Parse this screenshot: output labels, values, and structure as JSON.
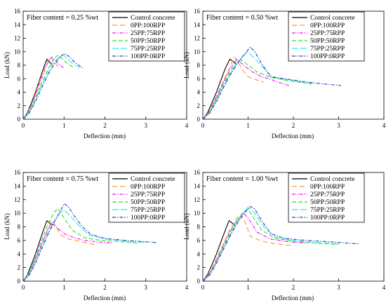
{
  "chart_data": [
    {
      "type": "line",
      "annotation": "Fiber content = 0.25 %wt",
      "xlabel": "Deflection (mm)",
      "ylabel": "Load (kN)",
      "xlim": [
        0,
        4
      ],
      "ylim": [
        0,
        16
      ],
      "xticks": [
        0,
        1,
        2,
        3,
        4
      ],
      "yticks": [
        0,
        2,
        4,
        6,
        8,
        10,
        12,
        14,
        16
      ],
      "grid": false,
      "legend_position": "top-right",
      "series": [
        {
          "name": "Control concrete",
          "x": [
            0,
            0.1,
            0.2,
            0.3,
            0.4,
            0.5,
            0.58,
            0.65,
            0.7
          ],
          "y": [
            0,
            0.9,
            2.4,
            4.0,
            5.8,
            7.6,
            8.9,
            8.4,
            8.1
          ]
        },
        {
          "name": "0PP:100RPP",
          "x": [
            0,
            0.1,
            0.2,
            0.3,
            0.4,
            0.5,
            0.6,
            0.68,
            0.76,
            0.85
          ],
          "y": [
            0,
            0.8,
            2.2,
            3.8,
            5.6,
            7.3,
            8.7,
            9.3,
            8.5,
            7.8
          ]
        },
        {
          "name": "25PP:75RPP",
          "x": [
            0,
            0.1,
            0.2,
            0.3,
            0.4,
            0.5,
            0.6,
            0.7,
            0.8,
            0.9,
            1.0
          ],
          "y": [
            0,
            0.8,
            2.1,
            3.6,
            5.3,
            6.9,
            8.3,
            9.2,
            8.6,
            8.0,
            7.6
          ]
        },
        {
          "name": "50PP:50RPP",
          "x": [
            0,
            0.15,
            0.3,
            0.45,
            0.6,
            0.75,
            0.85,
            0.95,
            1.05,
            1.15,
            1.25
          ],
          "y": [
            0,
            1.2,
            3.2,
            5.4,
            7.3,
            8.9,
            9.5,
            9.0,
            8.4,
            8.0,
            7.6
          ]
        },
        {
          "name": "75PP:25RPP",
          "x": [
            0,
            0.15,
            0.3,
            0.45,
            0.6,
            0.75,
            0.9,
            0.98,
            1.1,
            1.25,
            1.4
          ],
          "y": [
            0,
            1.0,
            2.9,
            5.0,
            6.9,
            8.4,
            9.3,
            9.6,
            8.8,
            8.1,
            7.6
          ]
        },
        {
          "name": "100PP:0RPP",
          "x": [
            0,
            0.15,
            0.3,
            0.45,
            0.6,
            0.75,
            0.9,
            1.0,
            1.1,
            1.25,
            1.45
          ],
          "y": [
            0,
            0.9,
            2.6,
            4.6,
            6.5,
            8.1,
            9.2,
            9.7,
            9.4,
            8.5,
            7.6
          ]
        }
      ]
    },
    {
      "type": "line",
      "annotation": "Fiber content = 0.50 %wt",
      "xlabel": "Deflection (mm)",
      "ylabel": "Load (kN)",
      "xlim": [
        0,
        4
      ],
      "ylim": [
        0,
        16
      ],
      "xticks": [
        0,
        1,
        2,
        3,
        4
      ],
      "yticks": [
        0,
        2,
        4,
        6,
        8,
        10,
        12,
        14,
        16
      ],
      "grid": false,
      "legend_position": "top-right",
      "series": [
        {
          "name": "Control concrete",
          "x": [
            0,
            0.1,
            0.2,
            0.3,
            0.4,
            0.5,
            0.6,
            0.68,
            0.74
          ],
          "y": [
            0,
            0.9,
            2.4,
            4.0,
            5.8,
            7.6,
            8.9,
            8.5,
            8.2
          ]
        },
        {
          "name": "0PP:100RPP",
          "x": [
            0,
            0.15,
            0.3,
            0.45,
            0.6,
            0.7,
            0.8,
            0.9,
            1.0,
            1.2,
            1.35
          ],
          "y": [
            0,
            1.3,
            3.4,
            5.6,
            7.8,
            9.2,
            8.2,
            7.1,
            6.3,
            5.8,
            5.5
          ]
        },
        {
          "name": "25PP:75RPP",
          "x": [
            0,
            0.15,
            0.3,
            0.45,
            0.6,
            0.75,
            0.9,
            1.1,
            1.3,
            1.5,
            1.7,
            1.9
          ],
          "y": [
            0,
            1.2,
            3.2,
            5.4,
            7.4,
            8.9,
            8.0,
            7.0,
            6.3,
            5.9,
            5.4,
            5.0
          ]
        },
        {
          "name": "50PP:50RPP",
          "x": [
            0,
            0.15,
            0.3,
            0.45,
            0.6,
            0.75,
            0.85,
            1.0,
            1.2,
            1.5,
            1.8,
            2.1,
            2.4
          ],
          "y": [
            0,
            1.1,
            3.0,
            5.1,
            7.0,
            8.4,
            8.8,
            8.0,
            7.0,
            6.2,
            5.8,
            5.5,
            5.2
          ]
        },
        {
          "name": "75PP:25RPP",
          "x": [
            0,
            0.15,
            0.3,
            0.45,
            0.6,
            0.75,
            0.9,
            1.0,
            1.1,
            1.3,
            1.5,
            1.8,
            2.1,
            2.45
          ],
          "y": [
            0,
            1.0,
            2.8,
            4.8,
            6.7,
            8.3,
            9.4,
            10.0,
            9.3,
            7.9,
            6.4,
            5.9,
            5.6,
            5.3
          ]
        },
        {
          "name": "100PP:0RPP",
          "x": [
            0,
            0.15,
            0.3,
            0.45,
            0.6,
            0.75,
            0.9,
            1.05,
            1.15,
            1.3,
            1.5,
            1.9,
            2.3,
            2.7,
            3.05
          ],
          "y": [
            0,
            0.9,
            2.6,
            4.6,
            6.5,
            8.1,
            9.5,
            10.7,
            10.0,
            8.2,
            6.3,
            5.9,
            5.5,
            5.2,
            5.0
          ]
        }
      ]
    },
    {
      "type": "line",
      "annotation": "Fiber content = 0.75 %wt",
      "xlabel": "Deflection (mm)",
      "ylabel": "Load (kN)",
      "xlim": [
        0,
        4
      ],
      "ylim": [
        0,
        16
      ],
      "xticks": [
        0,
        1,
        2,
        3,
        4
      ],
      "yticks": [
        0,
        2,
        4,
        6,
        8,
        10,
        12,
        14,
        16
      ],
      "grid": false,
      "legend_position": "top-right",
      "series": [
        {
          "name": "Control concrete",
          "x": [
            0,
            0.1,
            0.2,
            0.3,
            0.4,
            0.5,
            0.58,
            0.66,
            0.72
          ],
          "y": [
            0,
            0.9,
            2.4,
            4.0,
            5.8,
            7.6,
            8.9,
            8.5,
            8.2
          ]
        },
        {
          "name": "0PP:100RPP",
          "x": [
            0,
            0.15,
            0.3,
            0.45,
            0.6,
            0.7,
            0.8,
            0.9,
            1.1,
            1.3,
            1.5,
            1.75
          ],
          "y": [
            0,
            1.2,
            3.3,
            5.5,
            7.6,
            9.0,
            8.1,
            6.9,
            6.2,
            6.0,
            5.7,
            5.4
          ]
        },
        {
          "name": "25PP:75RPP",
          "x": [
            0,
            0.15,
            0.3,
            0.45,
            0.6,
            0.7,
            0.8,
            1.0,
            1.2,
            1.5,
            1.8,
            2.2
          ],
          "y": [
            0,
            1.2,
            3.2,
            5.4,
            7.5,
            8.6,
            8.0,
            7.0,
            6.5,
            6.0,
            5.8,
            5.6
          ]
        },
        {
          "name": "50PP:50RPP",
          "x": [
            0,
            0.15,
            0.3,
            0.45,
            0.6,
            0.75,
            0.85,
            1.0,
            1.2,
            1.5,
            1.9,
            2.4,
            2.8
          ],
          "y": [
            0,
            1.3,
            3.5,
            6.0,
            8.3,
            10.1,
            10.7,
            9.3,
            7.5,
            6.4,
            6.0,
            5.8,
            5.6
          ]
        },
        {
          "name": "75PP:25RPP",
          "x": [
            0,
            0.15,
            0.3,
            0.45,
            0.6,
            0.75,
            0.9,
            1.0,
            1.15,
            1.35,
            1.6,
            2.0,
            2.5,
            3.0
          ],
          "y": [
            0,
            1.0,
            2.9,
            5.0,
            7.0,
            8.7,
            10.0,
            10.5,
            9.6,
            8.3,
            6.8,
            6.2,
            5.9,
            5.7
          ]
        },
        {
          "name": "100PP:0RPP",
          "x": [
            0,
            0.15,
            0.3,
            0.45,
            0.6,
            0.75,
            0.9,
            1.0,
            1.1,
            1.25,
            1.45,
            1.65,
            2.0,
            2.5,
            3.0,
            3.25
          ],
          "y": [
            0,
            0.9,
            2.6,
            4.7,
            6.8,
            8.6,
            10.2,
            11.4,
            11.0,
            9.6,
            8.0,
            6.9,
            6.3,
            6.0,
            5.8,
            5.7
          ]
        }
      ]
    },
    {
      "type": "line",
      "annotation": "Fiber content = 1.00 %wt",
      "xlabel": "Deflection (mm)",
      "ylabel": "Load (kN)",
      "xlim": [
        0,
        4
      ],
      "ylim": [
        0,
        16
      ],
      "xticks": [
        0,
        1,
        2,
        3,
        4
      ],
      "yticks": [
        0,
        2,
        4,
        6,
        8,
        10,
        12,
        14,
        16
      ],
      "grid": false,
      "legend_position": "top-right",
      "series": [
        {
          "name": "Control concrete",
          "x": [
            0,
            0.1,
            0.2,
            0.3,
            0.4,
            0.5,
            0.58,
            0.66,
            0.72
          ],
          "y": [
            0,
            0.9,
            2.4,
            4.0,
            5.8,
            7.6,
            8.9,
            8.5,
            8.2
          ]
        },
        {
          "name": "0PP:100RPP",
          "x": [
            0,
            0.15,
            0.3,
            0.45,
            0.6,
            0.75,
            0.85,
            0.95,
            1.05,
            1.3,
            1.6,
            2.0
          ],
          "y": [
            0,
            1.2,
            3.3,
            5.5,
            7.6,
            9.3,
            9.9,
            8.4,
            6.6,
            5.9,
            5.5,
            5.2
          ]
        },
        {
          "name": "25PP:75RPP",
          "x": [
            0,
            0.15,
            0.3,
            0.45,
            0.6,
            0.75,
            0.9,
            1.0,
            1.2,
            1.5,
            1.9,
            2.3
          ],
          "y": [
            0,
            1.1,
            3.0,
            5.2,
            7.3,
            8.9,
            10.0,
            9.3,
            7.2,
            6.2,
            5.8,
            5.6
          ]
        },
        {
          "name": "50PP:50RPP",
          "x": [
            0,
            0.15,
            0.3,
            0.45,
            0.6,
            0.75,
            0.9,
            1.0,
            1.1,
            1.3,
            1.6,
            2.0,
            2.5,
            3.0
          ],
          "y": [
            0,
            1.0,
            2.9,
            5.0,
            7.1,
            8.9,
            10.2,
            10.6,
            9.5,
            7.5,
            6.3,
            5.9,
            5.6,
            5.4
          ]
        },
        {
          "name": "75PP:25RPP",
          "x": [
            0,
            0.15,
            0.3,
            0.45,
            0.6,
            0.75,
            0.9,
            1.0,
            1.15,
            1.35,
            1.6,
            2.0,
            2.5,
            3.0
          ],
          "y": [
            0,
            1.0,
            2.8,
            4.8,
            6.8,
            8.6,
            10.1,
            10.9,
            10.0,
            8.0,
            6.5,
            6.0,
            5.7,
            5.5
          ]
        },
        {
          "name": "100PP:0RPP",
          "x": [
            0,
            0.15,
            0.3,
            0.45,
            0.6,
            0.75,
            0.9,
            1.05,
            1.15,
            1.3,
            1.5,
            1.8,
            2.3,
            2.8,
            3.2,
            3.45
          ],
          "y": [
            0,
            0.9,
            2.6,
            4.6,
            6.6,
            8.4,
            9.9,
            11.0,
            10.6,
            8.9,
            7.0,
            6.3,
            6.0,
            5.8,
            5.6,
            5.5
          ]
        }
      ]
    }
  ],
  "series_styles": [
    {
      "color": "#000000",
      "dash": ""
    },
    {
      "color": "#f79646",
      "dash": "7 4"
    },
    {
      "color": "#ff00ff",
      "dash": "5 2 1.5 2"
    },
    {
      "color": "#33dd33",
      "dash": "6 3"
    },
    {
      "color": "#33e6e6",
      "dash": "9 3"
    },
    {
      "color": "#1f3fbf",
      "dash": "5 2 1.5 2"
    }
  ]
}
